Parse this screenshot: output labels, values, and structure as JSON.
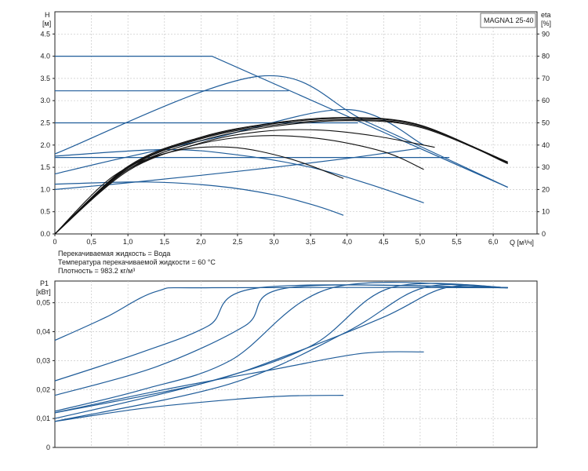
{
  "chart_data": [
    {
      "type": "line",
      "title": "",
      "model_label": "MAGNA1 25-40",
      "xlabel": "Q [м³/ч]",
      "ylabel_left": [
        "H",
        "[м]"
      ],
      "ylabel_right": [
        "eta",
        "[%]"
      ],
      "xlim": [
        0,
        6.6
      ],
      "ylim": [
        0,
        5
      ],
      "ylim_right": [
        0,
        100
      ],
      "x_ticks": [
        "0",
        "0,5",
        "1,0",
        "1,5",
        "2,0",
        "2,5",
        "3,0",
        "3,5",
        "4,0",
        "4,5",
        "5,0",
        "5,5",
        "6,0"
      ],
      "x_tick_values": [
        0,
        0.5,
        1.0,
        1.5,
        2.0,
        2.5,
        3.0,
        3.5,
        4.0,
        4.5,
        5.0,
        5.5,
        6.0
      ],
      "y_ticks": [
        "0.0",
        "0.5",
        "1.0",
        "1.5",
        "2.0",
        "2.5",
        "3.0",
        "3.5",
        "4.0",
        "4.5"
      ],
      "y_tick_values": [
        0,
        0.5,
        1.0,
        1.5,
        2.0,
        2.5,
        3.0,
        3.5,
        4.0,
        4.5
      ],
      "y_ticks_right": [
        "0",
        "10",
        "20",
        "30",
        "40",
        "50",
        "60",
        "70",
        "80",
        "90"
      ],
      "y_tick_values_right": [
        0,
        10,
        20,
        30,
        40,
        50,
        60,
        70,
        80,
        90
      ],
      "grid": true,
      "pump_curves": [
        {
          "x": [
            0,
            2.15,
            6.2
          ],
          "y": [
            4.0,
            4.0,
            1.05
          ]
        },
        {
          "x": [
            0,
            2.8,
            4.3,
            6.2
          ],
          "y": [
            1.8,
            3.55,
            2.5,
            1.05
          ]
        },
        {
          "x": [
            0,
            3.2
          ],
          "y": [
            3.22,
            3.22
          ]
        },
        {
          "x": [
            0,
            4.15
          ],
          "y": [
            2.5,
            2.5
          ]
        },
        {
          "x": [
            0,
            5.4
          ],
          "y": [
            1.72,
            1.72
          ]
        },
        {
          "x": [
            0,
            1.25,
            2.2,
            3.0,
            3.6,
            3.95
          ],
          "y": [
            1.12,
            1.17,
            1.08,
            0.88,
            0.62,
            0.42
          ]
        },
        {
          "x": [
            0,
            1.5,
            2.5,
            3.5,
            4.3,
            5.05
          ],
          "y": [
            1.75,
            1.9,
            1.78,
            1.5,
            1.12,
            0.7
          ]
        },
        {
          "x": [
            0,
            0.9,
            2.15,
            4.0,
            5.05
          ],
          "y": [
            1.35,
            1.7,
            2.15,
            2.8,
            2.0
          ]
        },
        {
          "x": [
            0,
            1.0,
            2.0,
            3.0,
            4.0,
            5.0
          ],
          "y": [
            1.0,
            1.15,
            1.32,
            1.5,
            1.7,
            1.93
          ]
        }
      ],
      "efficiency_curves": [
        {
          "x": [
            0,
            0.8,
            1.6,
            2.4,
            3.2,
            3.95
          ],
          "y": [
            0,
            1.3,
            1.85,
            1.95,
            1.7,
            1.25
          ]
        },
        {
          "x": [
            0,
            0.9,
            1.8,
            2.7,
            3.6,
            4.5,
            5.05
          ],
          "y": [
            0,
            1.35,
            1.95,
            2.2,
            2.15,
            1.85,
            1.45
          ]
        },
        {
          "x": [
            0,
            1.0,
            2.0,
            3.0,
            4.0,
            5.0,
            6.2
          ],
          "y": [
            0,
            1.45,
            2.1,
            2.42,
            2.55,
            2.4,
            1.6
          ]
        },
        {
          "x": [
            0,
            1.0,
            2.0,
            3.0,
            4.0,
            5.0,
            6.2
          ],
          "y": [
            0,
            1.48,
            2.14,
            2.45,
            2.57,
            2.42,
            1.62
          ]
        },
        {
          "x": [
            0,
            1.0,
            2.0,
            3.0,
            4.0,
            5.0,
            6.2
          ],
          "y": [
            0,
            1.5,
            2.16,
            2.48,
            2.6,
            2.44,
            1.6
          ]
        },
        {
          "x": [
            0,
            1.0,
            2.0,
            2.8,
            3.6,
            4.4,
            5.2
          ],
          "y": [
            0,
            1.42,
            2.05,
            2.3,
            2.34,
            2.2,
            1.95
          ]
        },
        {
          "x": [
            0,
            1.0,
            2.0,
            3.0,
            4.0,
            5.0,
            6.2
          ],
          "y": [
            0,
            1.52,
            2.18,
            2.5,
            2.62,
            2.45,
            1.58
          ]
        }
      ]
    },
    {
      "type": "line",
      "title": "",
      "xlabel": "",
      "ylabel": [
        "P1",
        "[кВт]"
      ],
      "xlim": [
        0,
        6.6
      ],
      "ylim": [
        0,
        0.0575
      ],
      "y_ticks": [
        "0",
        "0,01",
        "0,02",
        "0,03",
        "0,04",
        "0,05"
      ],
      "y_tick_values": [
        0,
        0.01,
        0.02,
        0.03,
        0.04,
        0.05
      ],
      "grid": true,
      "series": [
        {
          "x": [
            0,
            0.7,
            1.4,
            2.15,
            6.2
          ],
          "y": [
            0.037,
            0.045,
            0.054,
            0.0552,
            0.0552
          ]
        },
        {
          "x": [
            0,
            1.2,
            2.1,
            2.8,
            6.2
          ],
          "y": [
            0.023,
            0.033,
            0.042,
            0.0552,
            0.0552
          ]
        },
        {
          "x": [
            0,
            1.4,
            2.6,
            3.2,
            6.2
          ],
          "y": [
            0.018,
            0.028,
            0.042,
            0.0552,
            0.0552
          ]
        },
        {
          "x": [
            0,
            1.2,
            2.4,
            3.8,
            6.2
          ],
          "y": [
            0.0125,
            0.02,
            0.03,
            0.0552,
            0.0552
          ]
        },
        {
          "x": [
            0,
            2.0,
            3.5,
            4.6,
            6.2
          ],
          "y": [
            0.01,
            0.022,
            0.035,
            0.0552,
            0.0552
          ]
        },
        {
          "x": [
            0,
            2.4,
            4.0,
            5.05,
            6.2
          ],
          "y": [
            0.009,
            0.022,
            0.04,
            0.0552,
            0.0552
          ]
        },
        {
          "x": [
            0,
            2.0,
            3.2,
            4.5,
            5.35,
            6.2
          ],
          "y": [
            0.012,
            0.022,
            0.032,
            0.045,
            0.0552,
            0.0552
          ]
        },
        {
          "x": [
            0,
            1.5,
            3.0,
            4.2,
            5.05
          ],
          "y": [
            0.012,
            0.02,
            0.027,
            0.0325,
            0.033
          ]
        },
        {
          "x": [
            0,
            1.2,
            2.4,
            3.2,
            3.95
          ],
          "y": [
            0.009,
            0.0135,
            0.0165,
            0.0178,
            0.018
          ]
        }
      ]
    }
  ],
  "notes": {
    "liquid": "Перекачиваемая жидкость = Вода",
    "temperature": "Температура перекачиваемой жидкости = 60 °C",
    "density": "Плотность = 983.2 кг/м³"
  },
  "colors": {
    "pump_line": "#1f5c99",
    "efficiency_line": "#111111",
    "grid": "#c8c8c8",
    "frame": "#222222"
  }
}
